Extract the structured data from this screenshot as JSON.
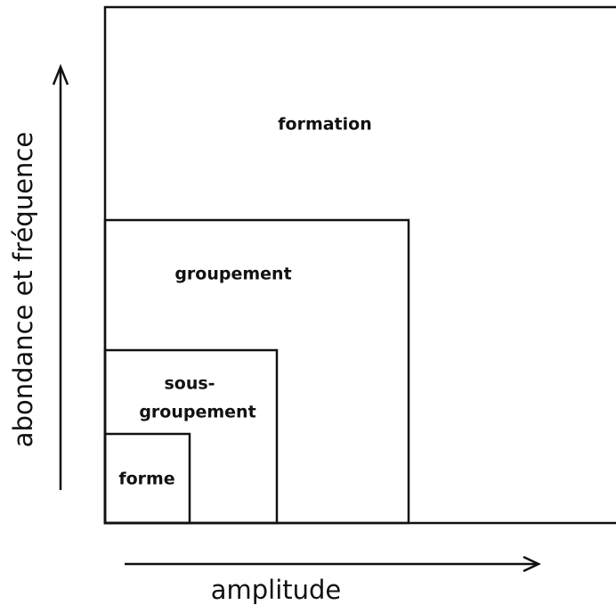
{
  "y_axis_label": "abondance et fréquence",
  "x_axis_label": "amplitude",
  "nodes": [
    {
      "label": [
        "formation"
      ]
    },
    {
      "label": [
        "groupement"
      ]
    },
    {
      "label": [
        "sous-",
        "groupement"
      ]
    },
    {
      "label": [
        "forme"
      ]
    }
  ]
}
